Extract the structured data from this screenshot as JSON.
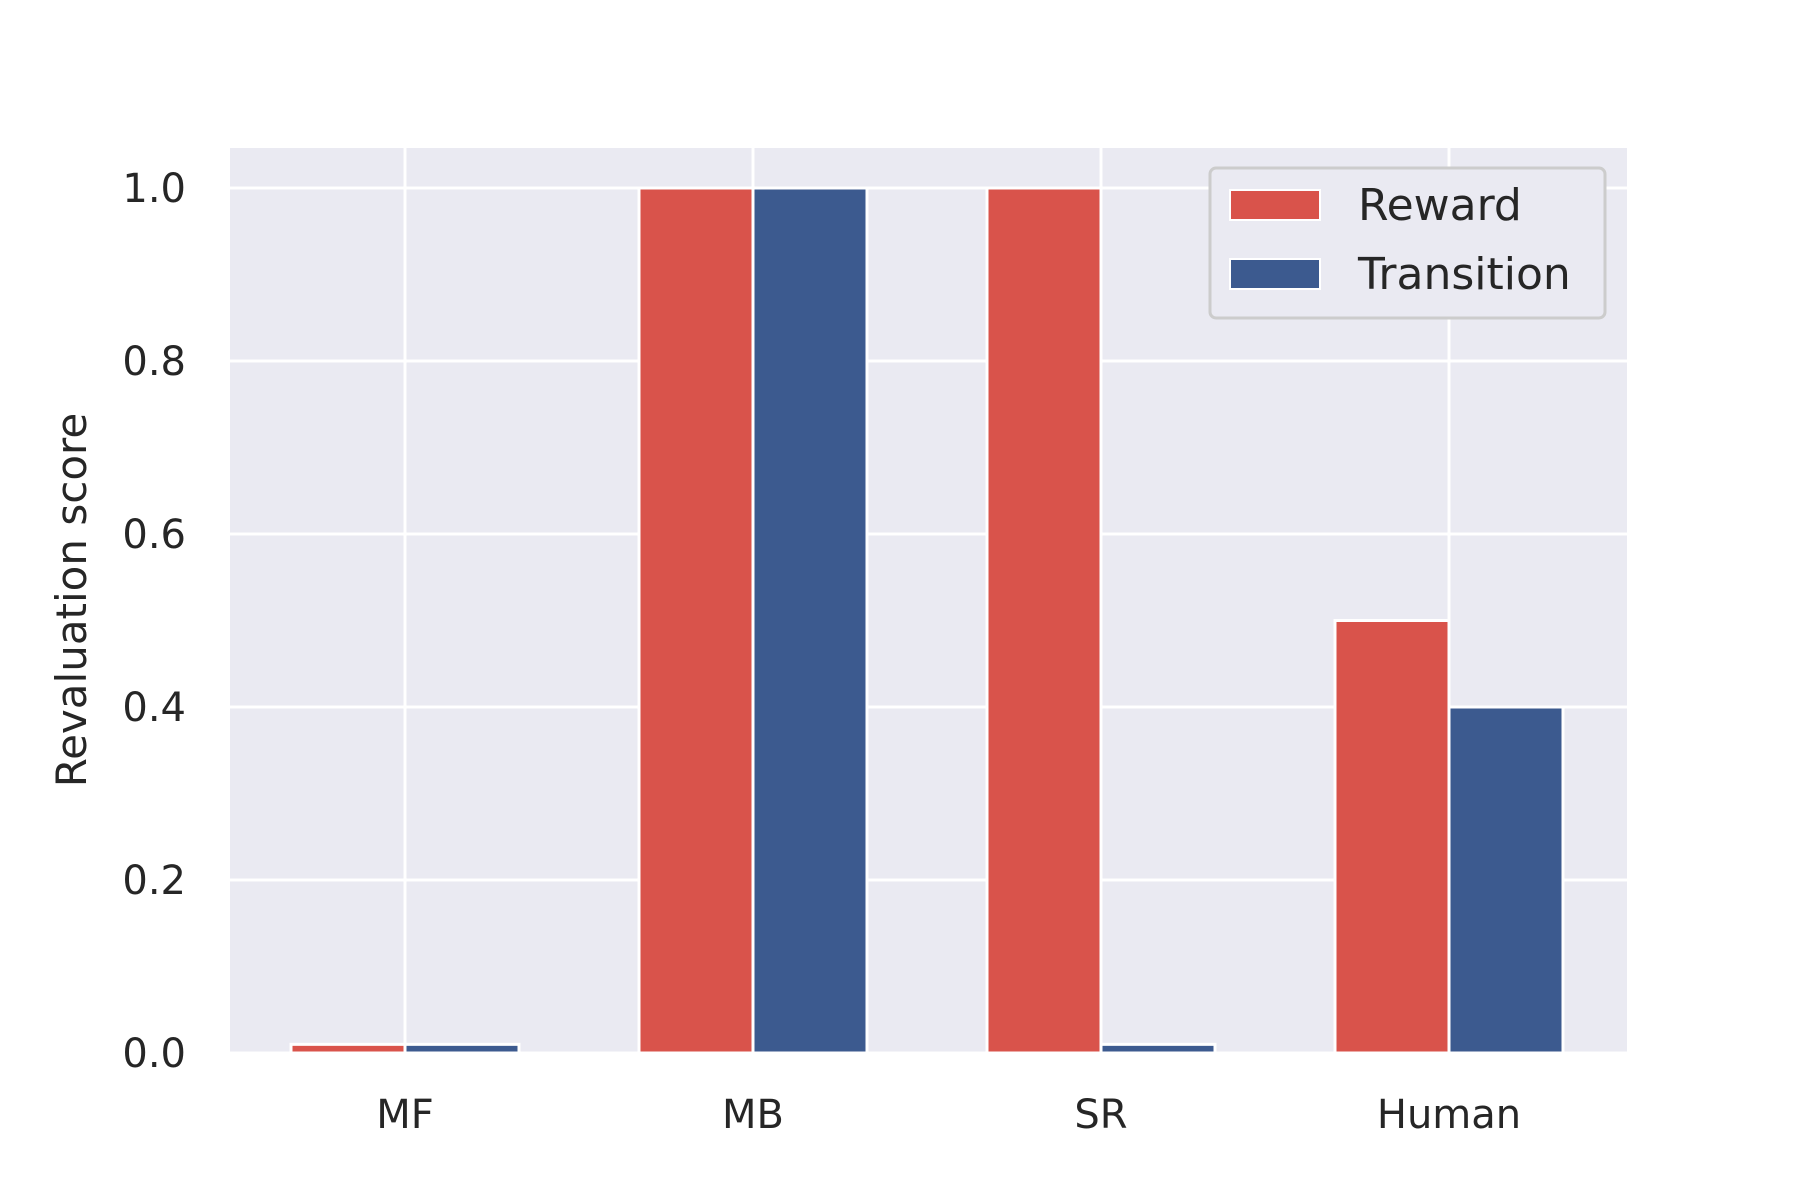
{
  "chart_data": {
    "type": "bar",
    "title": "",
    "xlabel": "",
    "ylabel": "Revaluation score",
    "categories": [
      "MF",
      "MB",
      "SR",
      "Human"
    ],
    "series": [
      {
        "name": "Reward",
        "values": [
          0.01,
          1.0,
          1.0,
          0.5
        ],
        "color": "#d9534b"
      },
      {
        "name": "Transition",
        "values": [
          0.01,
          1.0,
          0.01,
          0.4
        ],
        "color": "#3c5a8f"
      }
    ],
    "ylim": [
      0,
      1.05
    ],
    "yticks": [
      "0.0",
      "0.2",
      "0.4",
      "0.6",
      "0.8",
      "1.0"
    ],
    "grid": true,
    "legend_position": "top-right",
    "colors": {
      "background": "#eaeaf2",
      "grid": "#ffffff"
    }
  }
}
